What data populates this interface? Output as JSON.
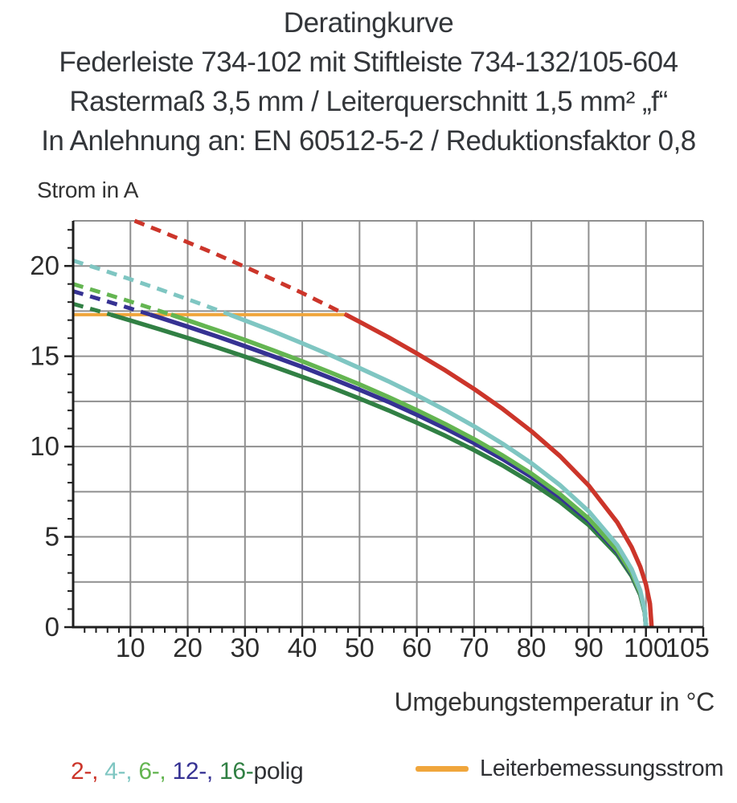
{
  "title_block": {
    "lines": [
      "Deratingkurve",
      "Federleiste 734-102 mit Stiftleiste 734-132/105-604",
      "Rastermaß 3,5 mm / Leiterquerschnitt 1,5 mm² „f“",
      "In Anlehnung an: EN 60512-5-2 / Reduktionsfaktor 0,8"
    ]
  },
  "chart_data": {
    "type": "line",
    "title": "Deratingkurve",
    "xlabel": "Umgebungstemperatur in °C",
    "ylabel": "Strom in A",
    "xlim": [
      0,
      110
    ],
    "ylim": [
      0,
      22.5
    ],
    "grid": true,
    "x_gridline_step": 10,
    "y_gridline_step": 2.5,
    "x_minor_tick_step": 2,
    "y_minor_tick_step": 1,
    "x_ticks": [
      {
        "v": 10,
        "label": "10"
      },
      {
        "v": 20,
        "label": "20"
      },
      {
        "v": 30,
        "label": "30"
      },
      {
        "v": 40,
        "label": "40"
      },
      {
        "v": 50,
        "label": "50"
      },
      {
        "v": 60,
        "label": "60"
      },
      {
        "v": 70,
        "label": "70"
      },
      {
        "v": 80,
        "label": "80"
      },
      {
        "v": 90,
        "label": "90"
      },
      {
        "v": 100,
        "label": "100"
      },
      {
        "v": 105,
        "label": "105",
        "dx": 16
      }
    ],
    "y_ticks": [
      {
        "v": 0,
        "label": "0"
      },
      {
        "v": 5,
        "label": "5"
      },
      {
        "v": 10,
        "label": "10"
      },
      {
        "v": 15,
        "label": "15"
      },
      {
        "v": 20,
        "label": "20"
      }
    ],
    "rated_current_A": 17.3,
    "rated_line": {
      "label": "Leiterbemessungsstrom",
      "color": "#f0a63c",
      "x_start": 0,
      "x_end": 47.6
    },
    "colors": {
      "grid": "#8f8f8f",
      "axis": "#1f1f1f",
      "text": "#2c2c2c"
    },
    "note": "curves dashed above rated current 17.3 A, solid below; all curves fall to 0 A at ca. 100 °C",
    "series": [
      {
        "name": "2-polig",
        "color": "#cc352a",
        "cross_T": 47.63,
        "points": [
          [
            10.73,
            22.5
          ],
          [
            15,
            21.96
          ],
          [
            20,
            21.31
          ],
          [
            25,
            20.65
          ],
          [
            30,
            19.95
          ],
          [
            35,
            19.24
          ],
          [
            40,
            18.5
          ],
          [
            45,
            17.72
          ],
          [
            47.63,
            17.3
          ],
          [
            50,
            16.91
          ],
          [
            55,
            16.06
          ],
          [
            60,
            15.16
          ],
          [
            65,
            14.21
          ],
          [
            70,
            13.19
          ],
          [
            75,
            12.08
          ],
          [
            80,
            10.85
          ],
          [
            85,
            9.47
          ],
          [
            90,
            7.85
          ],
          [
            95,
            5.8
          ],
          [
            97.5,
            4.43
          ],
          [
            99,
            3.35
          ],
          [
            100,
            2.37
          ],
          [
            100.7,
            1.3
          ],
          [
            101,
            0
          ]
        ]
      },
      {
        "name": "4-polig",
        "color": "#7fc6c2",
        "cross_T": 27.37,
        "points": [
          [
            0,
            20.3
          ],
          [
            5,
            19.79
          ],
          [
            10,
            19.26
          ],
          [
            15,
            18.72
          ],
          [
            20,
            18.16
          ],
          [
            25,
            17.58
          ],
          [
            27.37,
            17.3
          ],
          [
            30,
            16.98
          ],
          [
            35,
            16.37
          ],
          [
            40,
            15.72
          ],
          [
            45,
            15.05
          ],
          [
            50,
            14.35
          ],
          [
            55,
            13.62
          ],
          [
            60,
            12.84
          ],
          [
            65,
            12.01
          ],
          [
            70,
            11.12
          ],
          [
            75,
            10.15
          ],
          [
            80,
            9.08
          ],
          [
            85,
            7.86
          ],
          [
            90,
            6.42
          ],
          [
            95,
            4.54
          ],
          [
            97.5,
            3.21
          ],
          [
            99,
            2.03
          ],
          [
            99.8,
            0.91
          ],
          [
            100,
            0
          ]
        ]
      },
      {
        "name": "6-polig",
        "color": "#64b551",
        "cross_T": 17.1,
        "points": [
          [
            0,
            19.0
          ],
          [
            5,
            18.52
          ],
          [
            10,
            18.03
          ],
          [
            15,
            17.52
          ],
          [
            17.1,
            17.3
          ],
          [
            20,
            16.99
          ],
          [
            25,
            16.45
          ],
          [
            30,
            15.9
          ],
          [
            35,
            15.32
          ],
          [
            40,
            14.72
          ],
          [
            45,
            14.09
          ],
          [
            50,
            13.44
          ],
          [
            55,
            12.75
          ],
          [
            60,
            12.02
          ],
          [
            65,
            11.24
          ],
          [
            70,
            10.41
          ],
          [
            75,
            9.5
          ],
          [
            80,
            8.5
          ],
          [
            85,
            7.36
          ],
          [
            90,
            6.01
          ],
          [
            95,
            4.25
          ],
          [
            97.5,
            3.0
          ],
          [
            99,
            1.9
          ],
          [
            99.8,
            0.85
          ],
          [
            100,
            0
          ]
        ]
      },
      {
        "name": "12-polig",
        "color": "#363293",
        "cross_T": 13.49,
        "points": [
          [
            0,
            18.6
          ],
          [
            5,
            18.13
          ],
          [
            10,
            17.65
          ],
          [
            13.49,
            17.3
          ],
          [
            15,
            17.15
          ],
          [
            20,
            16.64
          ],
          [
            25,
            16.11
          ],
          [
            30,
            15.56
          ],
          [
            35,
            14.99
          ],
          [
            40,
            14.41
          ],
          [
            45,
            13.79
          ],
          [
            50,
            13.15
          ],
          [
            55,
            12.48
          ],
          [
            60,
            11.76
          ],
          [
            65,
            11.0
          ],
          [
            70,
            10.19
          ],
          [
            75,
            9.3
          ],
          [
            80,
            8.32
          ],
          [
            85,
            7.2
          ],
          [
            90,
            5.88
          ],
          [
            95,
            4.16
          ],
          [
            97.5,
            2.94
          ],
          [
            99,
            1.86
          ],
          [
            99.8,
            0.83
          ],
          [
            100,
            0
          ]
        ]
      },
      {
        "name": "16-polig",
        "color": "#318044",
        "cross_T": 6.59,
        "points": [
          [
            0,
            17.9
          ],
          [
            5,
            17.45
          ],
          [
            6.59,
            17.3
          ],
          [
            10,
            16.98
          ],
          [
            15,
            16.5
          ],
          [
            20,
            16.01
          ],
          [
            25,
            15.5
          ],
          [
            30,
            14.98
          ],
          [
            35,
            14.43
          ],
          [
            40,
            13.86
          ],
          [
            45,
            13.28
          ],
          [
            50,
            12.66
          ],
          [
            55,
            12.01
          ],
          [
            60,
            11.32
          ],
          [
            65,
            10.59
          ],
          [
            70,
            9.8
          ],
          [
            75,
            8.95
          ],
          [
            80,
            8.0
          ],
          [
            85,
            6.93
          ],
          [
            90,
            5.66
          ],
          [
            95,
            4.0
          ],
          [
            97.5,
            2.83
          ],
          [
            99,
            1.79
          ],
          [
            99.8,
            0.8
          ],
          [
            100,
            0
          ]
        ]
      }
    ]
  },
  "legend": {
    "poles": [
      {
        "label": "2-",
        "color": "#cc352a"
      },
      {
        "label": "4-",
        "color": "#7fc6c2"
      },
      {
        "label": "6-",
        "color": "#64b551"
      },
      {
        "label": "12-",
        "color": "#363293"
      },
      {
        "label": "16-",
        "color": "#318044"
      }
    ],
    "suffix": "polig",
    "rated_label": "Leiterbemessungsstrom",
    "rated_color": "#f0a63c"
  }
}
